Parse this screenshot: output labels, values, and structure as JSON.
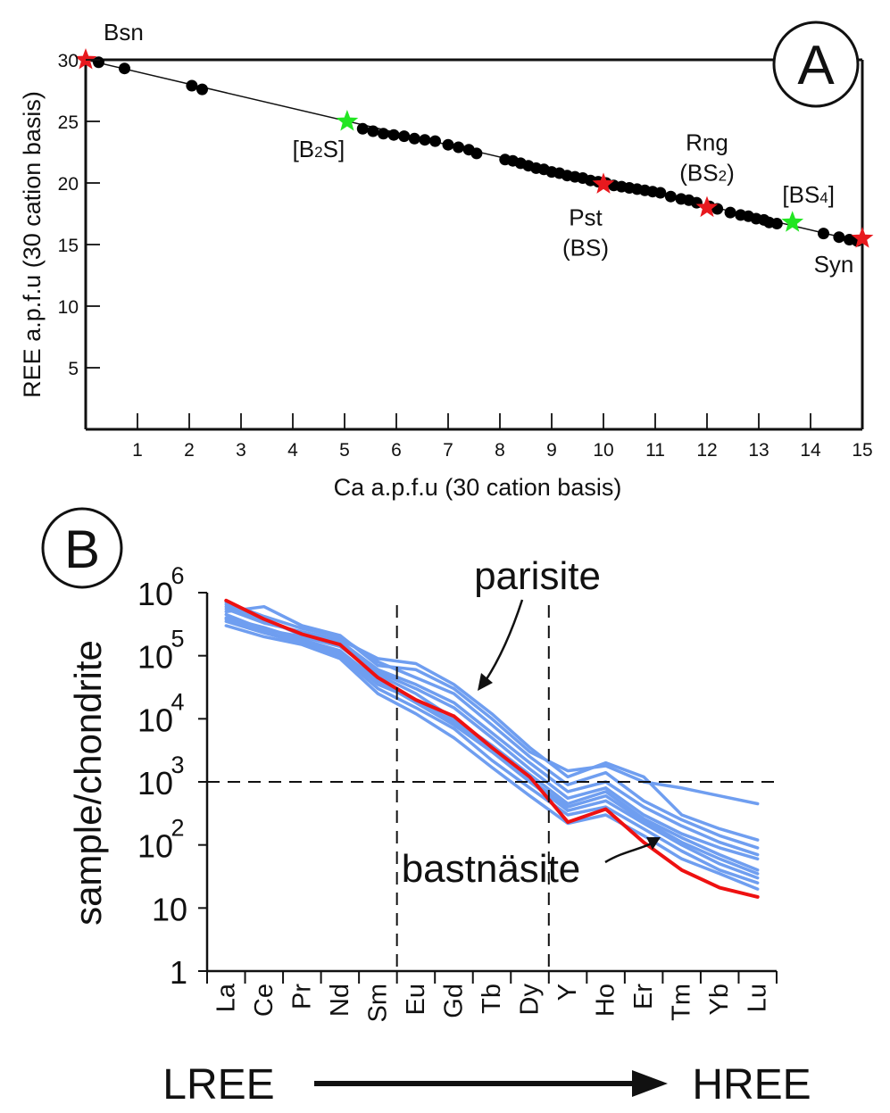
{
  "colors": {
    "axis": "#111111",
    "marker": "#000000",
    "red_star": "#e8191e",
    "green_star": "#22e622",
    "parisite_line": "#6f9ef0",
    "bastnasite_line": "#ee1111"
  },
  "chart_data": [
    {
      "panel_label": "A",
      "type": "scatter",
      "title": "",
      "xlabel": "Ca a.p.f.u (30 cation basis)",
      "ylabel": "REE a.p.f.u (30 cation basis)",
      "xlim": [
        0,
        15
      ],
      "ylim": [
        0,
        30
      ],
      "xticks": [
        "1",
        "2",
        "3",
        "4",
        "5",
        "6",
        "7",
        "8",
        "9",
        "10",
        "11",
        "12",
        "13",
        "14",
        "15"
      ],
      "yticks": [
        "5",
        "10",
        "15",
        "20",
        "25",
        "30"
      ],
      "trend_line": {
        "x": [
          0,
          15
        ],
        "y": [
          30,
          15.2
        ]
      },
      "points": [
        [
          0.25,
          29.8
        ],
        [
          0.75,
          29.3
        ],
        [
          2.05,
          27.9
        ],
        [
          2.25,
          27.6
        ],
        [
          5.35,
          24.4
        ],
        [
          5.55,
          24.2
        ],
        [
          5.75,
          24.0
        ],
        [
          5.95,
          23.9
        ],
        [
          6.15,
          23.8
        ],
        [
          6.35,
          23.6
        ],
        [
          6.55,
          23.5
        ],
        [
          6.75,
          23.4
        ],
        [
          7.0,
          23.1
        ],
        [
          7.2,
          22.9
        ],
        [
          7.4,
          22.7
        ],
        [
          7.55,
          22.4
        ],
        [
          8.1,
          21.9
        ],
        [
          8.25,
          21.8
        ],
        [
          8.4,
          21.6
        ],
        [
          8.55,
          21.4
        ],
        [
          8.7,
          21.2
        ],
        [
          8.85,
          21.1
        ],
        [
          9.0,
          20.9
        ],
        [
          9.15,
          20.8
        ],
        [
          9.3,
          20.6
        ],
        [
          9.45,
          20.5
        ],
        [
          9.6,
          20.4
        ],
        [
          9.75,
          20.2
        ],
        [
          9.9,
          20.1
        ],
        [
          10.05,
          20.0
        ],
        [
          10.2,
          19.8
        ],
        [
          10.35,
          19.7
        ],
        [
          10.5,
          19.6
        ],
        [
          10.65,
          19.5
        ],
        [
          10.8,
          19.4
        ],
        [
          10.95,
          19.3
        ],
        [
          11.1,
          19.2
        ],
        [
          11.3,
          18.9
        ],
        [
          11.5,
          18.7
        ],
        [
          11.65,
          18.6
        ],
        [
          11.8,
          18.4
        ],
        [
          12.05,
          18.1
        ],
        [
          12.2,
          17.9
        ],
        [
          12.45,
          17.6
        ],
        [
          12.65,
          17.4
        ],
        [
          12.8,
          17.3
        ],
        [
          12.95,
          17.1
        ],
        [
          13.1,
          17.0
        ],
        [
          13.2,
          16.8
        ],
        [
          13.35,
          16.7
        ],
        [
          14.25,
          15.9
        ],
        [
          14.55,
          15.6
        ],
        [
          14.75,
          15.4
        ],
        [
          14.9,
          15.3
        ]
      ],
      "end_members": [
        {
          "label": "Bsn",
          "sublabel": "",
          "x": 0,
          "y": 30.0,
          "color": "red"
        },
        {
          "label": "[B2S]",
          "sublabel": "",
          "x": 5.05,
          "y": 25.0,
          "color": "green"
        },
        {
          "label": "Pst",
          "sublabel": "(BS)",
          "x": 10.0,
          "y": 19.9,
          "color": "red"
        },
        {
          "label": "Rng",
          "sublabel": "(BS2)",
          "x": 12.0,
          "y": 18.0,
          "color": "red"
        },
        {
          "label": "[BS4]",
          "sublabel": "",
          "x": 13.65,
          "y": 16.8,
          "color": "green"
        },
        {
          "label": "Syn",
          "sublabel": "",
          "x": 15.0,
          "y": 15.5,
          "color": "red"
        }
      ]
    },
    {
      "panel_label": "B",
      "type": "line",
      "title": "",
      "xlabel": "",
      "ylabel": "sample/chondrite",
      "yscale": "log",
      "ylim": [
        1,
        1000000
      ],
      "categories": [
        "La",
        "Ce",
        "Pr",
        "Nd",
        "Sm",
        "Eu",
        "Gd",
        "Tb",
        "Dy",
        "Y",
        "Ho",
        "Er",
        "Tm",
        "Yb",
        "Lu"
      ],
      "ytick_labels": [
        "1",
        "10",
        "10^2",
        "10^3",
        "10^4",
        "10^5",
        "10^6"
      ],
      "reference_lines": {
        "vertical_between": [
          "Sm|Eu",
          "Dy|Y"
        ],
        "horizontal": 1000
      },
      "annotations": {
        "parisite": "parisite",
        "bastnasite": "bastnäsite"
      },
      "direction_left": "LREE",
      "direction_right": "HREE",
      "series": [
        {
          "name": "bastnäsite",
          "color": "red",
          "values": [
            750000,
            380000,
            220000,
            150000,
            45000,
            20000,
            11000,
            3500,
            1200,
            230,
            370,
            110,
            40,
            21,
            15
          ]
        },
        {
          "name": "parisite-1",
          "color": "blue",
          "values": [
            600000,
            350000,
            230000,
            160000,
            55000,
            30000,
            15000,
            5000,
            1600,
            550,
            800,
            300,
            150,
            90,
            60
          ]
        },
        {
          "name": "parisite-2",
          "color": "blue",
          "values": [
            400000,
            280000,
            180000,
            120000,
            40000,
            18000,
            8000,
            3000,
            1000,
            350,
            500,
            220,
            100,
            50,
            30
          ]
        },
        {
          "name": "parisite-3",
          "color": "blue",
          "values": [
            300000,
            200000,
            150000,
            90000,
            25000,
            12000,
            5000,
            1700,
            600,
            220,
            300,
            140,
            60,
            35,
            20
          ]
        },
        {
          "name": "parisite-4",
          "color": "blue",
          "values": [
            700000,
            420000,
            270000,
            200000,
            80000,
            45000,
            25000,
            8000,
            2500,
            900,
            1400,
            500,
            250,
            140,
            90
          ]
        },
        {
          "name": "parisite-5",
          "color": "blue",
          "values": [
            500000,
            600000,
            300000,
            210000,
            70000,
            60000,
            30000,
            10000,
            3000,
            1500,
            1800,
            1000,
            800,
            600,
            450
          ]
        },
        {
          "name": "parisite-6",
          "color": "blue",
          "values": [
            350000,
            230000,
            160000,
            100000,
            30000,
            15000,
            7000,
            2200,
            800,
            300,
            400,
            180,
            80,
            40,
            25
          ]
        },
        {
          "name": "parisite-7",
          "color": "blue",
          "values": [
            550000,
            330000,
            240000,
            180000,
            90000,
            75000,
            35000,
            12000,
            3500,
            1200,
            2000,
            1200,
            300,
            180,
            120
          ]
        },
        {
          "name": "parisite-8",
          "color": "blue",
          "values": [
            450000,
            260000,
            200000,
            140000,
            50000,
            25000,
            10000,
            3800,
            1300,
            450,
            700,
            260,
            130,
            70,
            40
          ]
        },
        {
          "name": "parisite-9",
          "color": "blue",
          "values": [
            650000,
            380000,
            210000,
            170000,
            60000,
            35000,
            18000,
            6000,
            2000,
            700,
            1000,
            400,
            200,
            110,
            70
          ]
        },
        {
          "name": "parisite-10",
          "color": "blue",
          "values": [
            380000,
            240000,
            170000,
            110000,
            35000,
            20000,
            9000,
            3200,
            1100,
            400,
            600,
            240,
            110,
            60,
            35
          ]
        }
      ]
    }
  ]
}
